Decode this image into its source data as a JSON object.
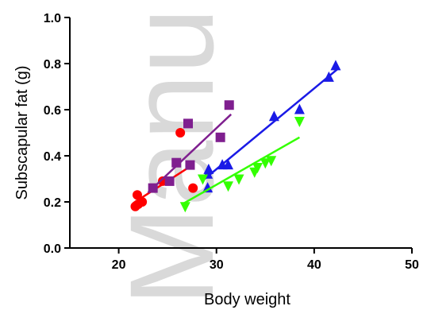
{
  "chart_data": {
    "type": "scatter",
    "title": "",
    "xlabel": "Body weight",
    "ylabel": "Subscapular fat (g)",
    "xlim": [
      15,
      50
    ],
    "ylim": [
      0.0,
      1.0
    ],
    "x_ticks": [
      "20",
      "30",
      "40",
      "50"
    ],
    "y_ticks": [
      "0.0",
      "0.2",
      "0.4",
      "0.6",
      "0.8",
      "1.0"
    ],
    "grid": false,
    "legend": "none",
    "watermark": "Manu",
    "series": [
      {
        "marker": "circle",
        "color": "#ff0000",
        "points": [
          [
            21.7,
            0.18
          ],
          [
            22.0,
            0.19
          ],
          [
            21.9,
            0.23
          ],
          [
            22.4,
            0.2
          ],
          [
            24.5,
            0.29
          ],
          [
            26.3,
            0.5
          ],
          [
            27.6,
            0.26
          ]
        ],
        "fit": [
          [
            21.5,
            0.195
          ],
          [
            27.0,
            0.345
          ]
        ]
      },
      {
        "marker": "square",
        "color": "#7f1f8f",
        "points": [
          [
            23.5,
            0.26
          ],
          [
            25.2,
            0.29
          ],
          [
            25.9,
            0.37
          ],
          [
            27.1,
            0.54
          ],
          [
            27.3,
            0.36
          ],
          [
            30.4,
            0.48
          ],
          [
            31.3,
            0.62
          ]
        ],
        "fit": [
          [
            23.0,
            0.24
          ],
          [
            31.5,
            0.58
          ]
        ]
      },
      {
        "marker": "triangle-up",
        "color": "#1a1ae6",
        "points": [
          [
            29.1,
            0.26
          ],
          [
            29.1,
            0.32
          ],
          [
            29.2,
            0.34
          ],
          [
            30.6,
            0.36
          ],
          [
            31.2,
            0.36
          ],
          [
            35.9,
            0.57
          ],
          [
            38.5,
            0.6
          ],
          [
            41.5,
            0.74
          ],
          [
            42.2,
            0.79
          ]
        ],
        "fit": [
          [
            28.8,
            0.3
          ],
          [
            42.5,
            0.78
          ]
        ]
      },
      {
        "marker": "triangle-down",
        "color": "#33ff00",
        "points": [
          [
            26.8,
            0.18
          ],
          [
            28.6,
            0.3
          ],
          [
            31.2,
            0.27
          ],
          [
            32.3,
            0.3
          ],
          [
            33.9,
            0.33
          ],
          [
            34.2,
            0.35
          ],
          [
            35.0,
            0.37
          ],
          [
            35.6,
            0.38
          ],
          [
            38.5,
            0.55
          ]
        ],
        "fit": [
          [
            26.5,
            0.19
          ],
          [
            38.5,
            0.48
          ]
        ]
      }
    ]
  }
}
